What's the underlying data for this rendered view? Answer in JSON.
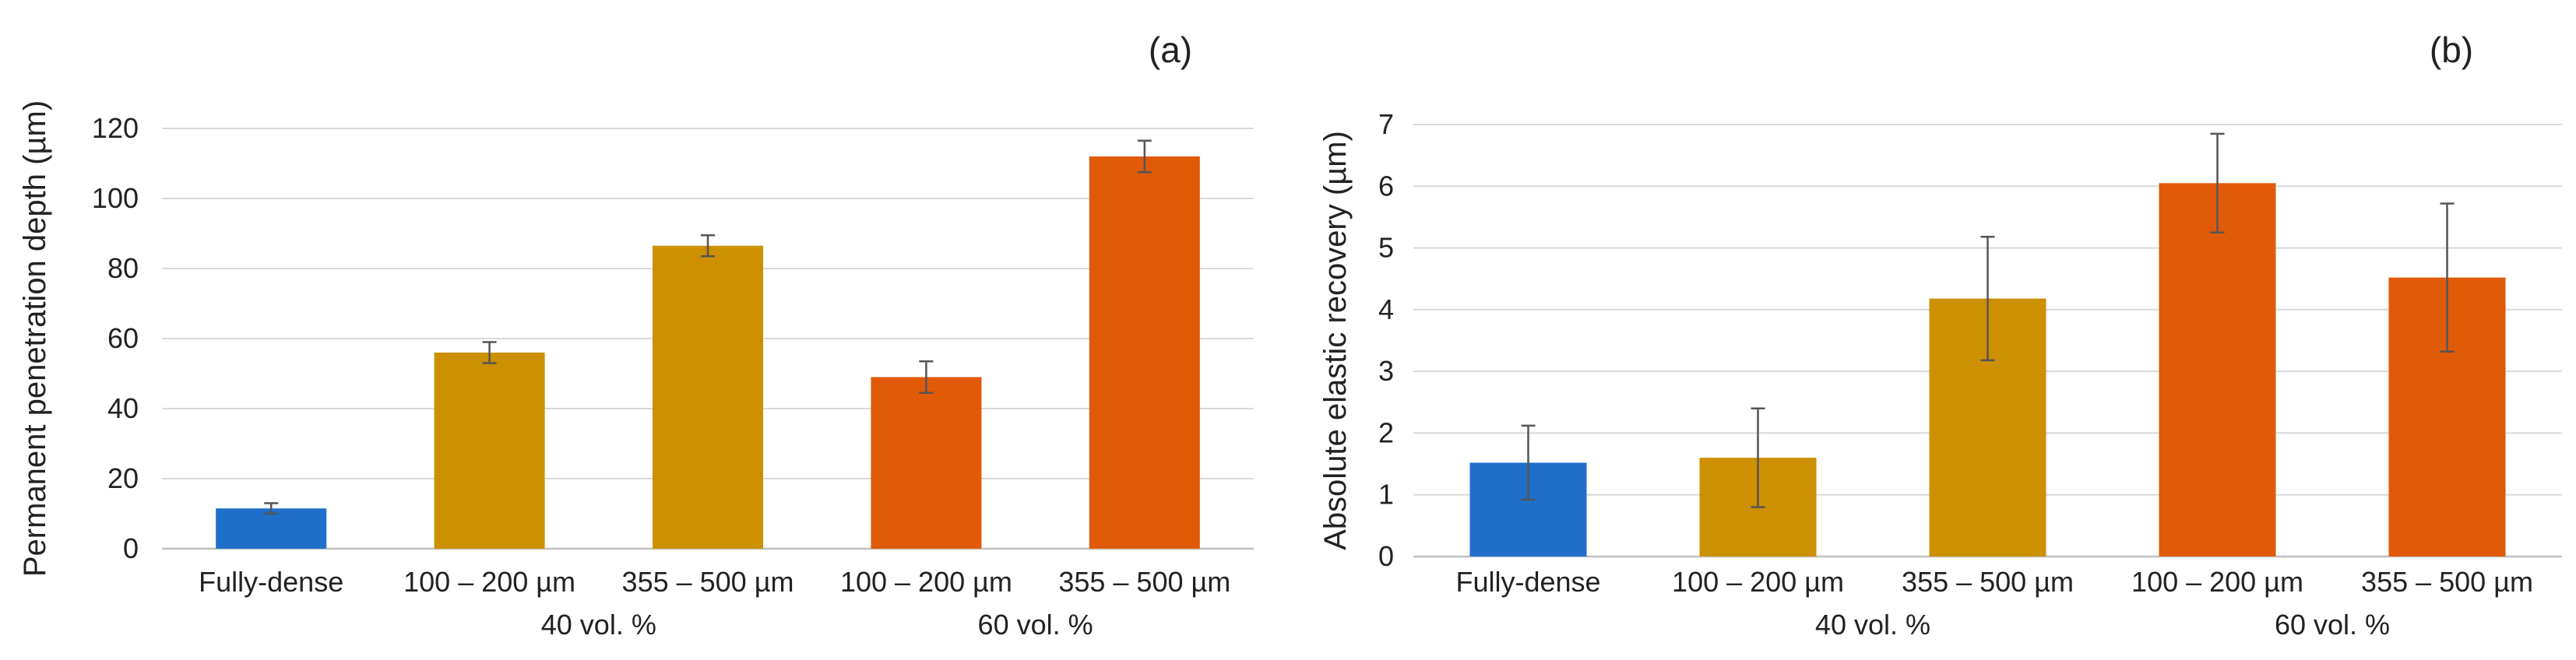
{
  "figure": {
    "colors": {
      "dense": "#1f6fca",
      "vol40": "#cc9000",
      "vol60": "#e05a08",
      "grid": "#d9d9d9",
      "axis": "#bfbfbf",
      "error": "#555555"
    }
  },
  "chart_data": [
    {
      "type": "bar",
      "panel_label": "(a)",
      "ylabel": "Permanent penetration depth (µm)",
      "xlabel": "",
      "ylim": [
        0,
        120
      ],
      "yticks": [
        0,
        20,
        40,
        60,
        80,
        100,
        120
      ],
      "ytick_labels": [
        "0",
        "20",
        "40",
        "60",
        "80",
        "100",
        "120"
      ],
      "categories": [
        "Fully-dense",
        "100 – 200 µm",
        "355 – 500 µm",
        "100 – 200 µm",
        "355 – 500 µm"
      ],
      "groups": [
        "",
        "40 vol. %",
        "40 vol. %",
        "60 vol. %",
        "60 vol. %"
      ],
      "group_labels": [
        "40 vol. %",
        "60 vol. %"
      ],
      "values": [
        11.5,
        56,
        86.5,
        49,
        112
      ],
      "errors": [
        1.5,
        3,
        3,
        4.5,
        4.5
      ],
      "bar_colors": [
        "#1f6fca",
        "#cc9000",
        "#cc9000",
        "#e05a08",
        "#e05a08"
      ],
      "grid": true
    },
    {
      "type": "bar",
      "panel_label": "(b)",
      "ylabel": "Absolute elastic recovery (µm)",
      "xlabel": "",
      "ylim": [
        0,
        7
      ],
      "yticks": [
        0,
        1,
        2,
        3,
        4,
        5,
        6,
        7
      ],
      "ytick_labels": [
        "0",
        "1",
        "2",
        "3",
        "4",
        "5",
        "6",
        "7"
      ],
      "categories": [
        "Fully-dense",
        "100 – 200 µm",
        "355 – 500 µm",
        "100 – 200 µm",
        "355 – 500 µm"
      ],
      "groups": [
        "",
        "40 vol. %",
        "40 vol. %",
        "60 vol. %",
        "60 vol. %"
      ],
      "group_labels": [
        "40 vol. %",
        "60 vol. %"
      ],
      "values": [
        1.52,
        1.6,
        4.18,
        6.05,
        4.52
      ],
      "errors": [
        0.6,
        0.8,
        1.0,
        0.8,
        1.2
      ],
      "bar_colors": [
        "#1f6fca",
        "#cc9000",
        "#cc9000",
        "#e05a08",
        "#e05a08"
      ],
      "grid": true
    }
  ]
}
